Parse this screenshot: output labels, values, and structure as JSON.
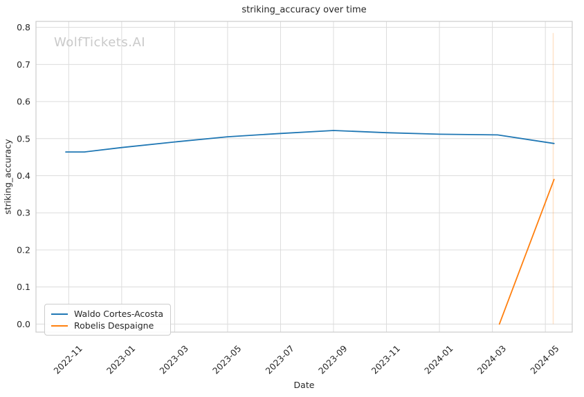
{
  "figure": {
    "title": "striking_accuracy over time",
    "watermark": "WolfTickets.AI",
    "xlabel": "Date",
    "ylabel": "striking_accuracy"
  },
  "colors": {
    "series_blue": "#1f77b4",
    "series_orange": "#ff7f0e",
    "grid": "#dcdcdc",
    "spine": "#cccccc",
    "text": "#262626",
    "watermark": "#c9c9c9"
  },
  "chart_data": {
    "type": "line",
    "title": "striking_accuracy over time",
    "xlabel": "Date",
    "ylabel": "striking_accuracy",
    "grid": true,
    "legend_position": "lower left",
    "x_tick_labels": [
      "2022-11",
      "2023-01",
      "2023-03",
      "2023-05",
      "2023-07",
      "2023-09",
      "2023-11",
      "2024-01",
      "2024-03",
      "2024-05"
    ],
    "y_tick_labels": [
      "0.0",
      "0.1",
      "0.2",
      "0.3",
      "0.4",
      "0.5",
      "0.6",
      "0.7",
      "0.8"
    ],
    "y_ticks": [
      0.0,
      0.1,
      0.2,
      0.3,
      0.4,
      0.5,
      0.6,
      0.7,
      0.8
    ],
    "ylim": [
      -0.022,
      0.816
    ],
    "series": [
      {
        "name": "Waldo Cortes-Acosta",
        "color": "#1f77b4",
        "points": [
          [
            "2022-10-28",
            0.464
          ],
          [
            "2022-11-19",
            0.464
          ],
          [
            "2023-01-01",
            0.476
          ],
          [
            "2023-03-01",
            0.491
          ],
          [
            "2023-05-01",
            0.505
          ],
          [
            "2023-07-01",
            0.514
          ],
          [
            "2023-09-01",
            0.522
          ],
          [
            "2023-11-01",
            0.516
          ],
          [
            "2024-01-01",
            0.512
          ],
          [
            "2024-03-07",
            0.51
          ],
          [
            "2024-05-11",
            0.487
          ]
        ]
      },
      {
        "name": "Robelis Despaigne",
        "color": "#ff7f0e",
        "points": [
          [
            "2024-03-09",
            0.0
          ],
          [
            "2024-05-11",
            0.39
          ]
        ]
      }
    ],
    "annotation_line": {
      "date": "2024-05-10",
      "y_from": 0.0,
      "y_to": 0.785,
      "color": "#ff7f0e",
      "opacity": 0.22
    }
  }
}
